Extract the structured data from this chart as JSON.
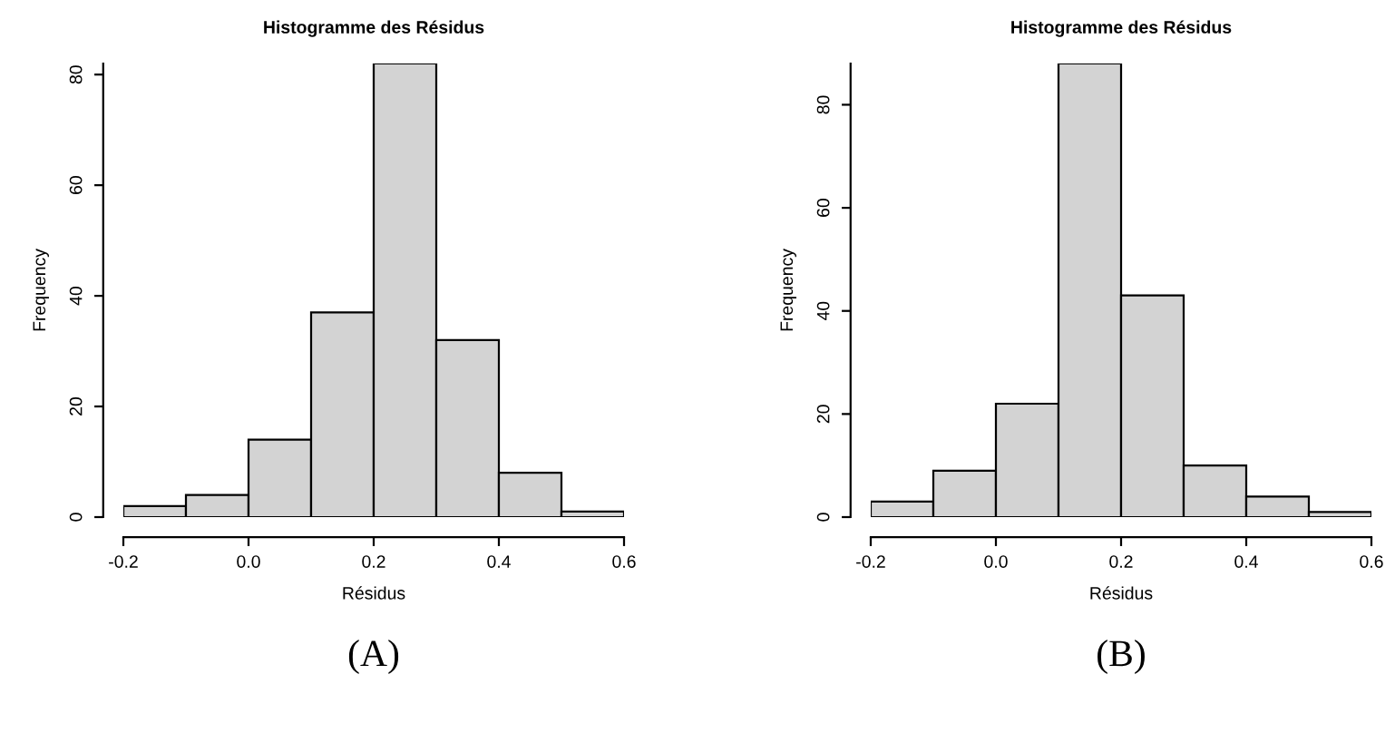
{
  "chart_data": [
    {
      "type": "histogram",
      "title": "Histogramme des Résidus",
      "xlabel": "Résidus",
      "ylabel": "Frequency",
      "bins": [
        -0.2,
        -0.1,
        0.0,
        0.1,
        0.2,
        0.3,
        0.4,
        0.5,
        0.6
      ],
      "values": [
        2,
        4,
        14,
        37,
        82,
        32,
        8,
        1
      ],
      "color": "#d3d3d3",
      "xlim": [
        -0.2,
        0.6
      ],
      "ylim": [
        0,
        82
      ],
      "xticks": [
        -0.2,
        {
          "value": 0,
          "label": "0.0"
        },
        0.2,
        0.4,
        0.6
      ],
      "yticks": [
        0,
        20,
        40,
        60,
        80
      ],
      "grid": false,
      "annotations": [
        "(A)"
      ]
    },
    {
      "type": "histogram",
      "title": "Histogramme des Résidus",
      "xlabel": "Résidus",
      "ylabel": "Frequency",
      "bins": [
        -0.2,
        -0.1,
        0.0,
        0.1,
        0.2,
        0.3,
        0.4,
        0.5,
        0.6
      ],
      "values": [
        3,
        9,
        22,
        88,
        43,
        10,
        4,
        1
      ],
      "color": "#d3d3d3",
      "xlim": [
        -0.2,
        0.6
      ],
      "ylim": [
        0,
        88
      ],
      "xticks": [
        -0.2,
        {
          "value": 0,
          "label": "0.0"
        },
        0.2,
        0.4,
        0.6
      ],
      "yticks": [
        0,
        20,
        40,
        60,
        80
      ],
      "grid": false,
      "annotations": [
        "(B)"
      ]
    }
  ]
}
